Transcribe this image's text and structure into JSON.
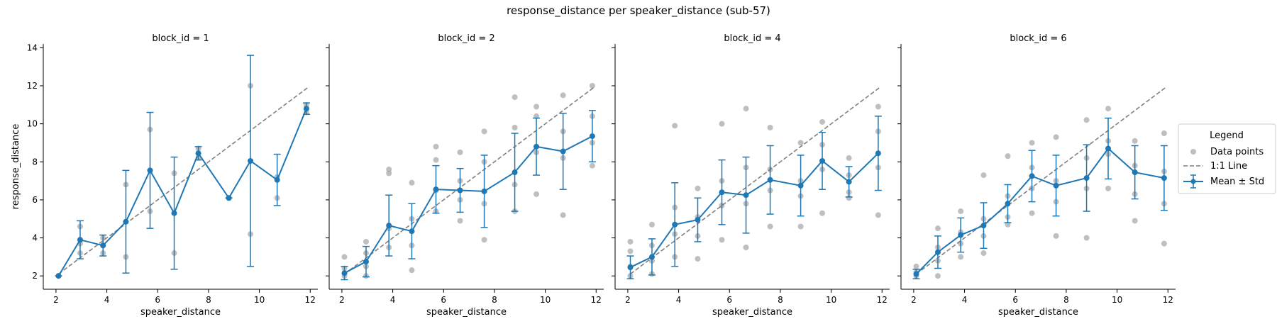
{
  "figure": {
    "title": "response_distance per speaker_distance (sub-57)",
    "colors": {
      "mean": "#1f77b4",
      "points": "#a9a9a9",
      "identity": "#808080"
    }
  },
  "legend": {
    "title": "Legend",
    "placement": "right",
    "items": [
      {
        "label": "Data points",
        "marker": "circle"
      },
      {
        "label": "1:1 Line",
        "marker": "dashed-line"
      },
      {
        "label": "Mean ± Std",
        "marker": "errorbar-line"
      }
    ]
  },
  "chart_data": [
    {
      "type": "line",
      "title": "block_id = 1",
      "xlabel": "speaker_distance",
      "ylabel": "response_distance",
      "xlim": [
        1.5,
        12.3
      ],
      "ylim": [
        1.3,
        14.2
      ],
      "xticks": [
        2,
        4,
        6,
        8,
        10,
        12
      ],
      "yticks": [
        2,
        4,
        6,
        8,
        10,
        12,
        14
      ],
      "identity_line": [
        [
          2.1,
          2.1
        ],
        [
          11.9,
          11.9
        ]
      ],
      "mean_series": {
        "x": [
          2.1,
          2.95,
          3.85,
          4.75,
          5.7,
          6.65,
          7.6,
          8.8,
          9.65,
          10.7,
          11.85
        ],
        "mean": [
          2.0,
          3.9,
          3.6,
          4.85,
          7.55,
          5.3,
          8.45,
          6.1,
          8.05,
          7.05,
          10.8
        ],
        "std": [
          0.0,
          1.0,
          0.55,
          2.7,
          3.05,
          2.95,
          0.35,
          0.0,
          5.55,
          1.35,
          0.3
        ]
      },
      "points": {
        "x": [
          2.1,
          2.95,
          2.95,
          2.95,
          3.85,
          3.85,
          3.85,
          4.75,
          4.75,
          5.7,
          5.7,
          6.65,
          6.65,
          7.6,
          7.6,
          8.8,
          9.65,
          9.65,
          10.7,
          10.7,
          11.85,
          11.85
        ],
        "y": [
          2.0,
          4.6,
          3.7,
          3.2,
          4.0,
          3.6,
          3.2,
          6.8,
          3.0,
          9.7,
          5.4,
          7.4,
          3.2,
          8.7,
          8.2,
          6.1,
          12.0,
          4.2,
          7.2,
          6.1,
          11.0,
          10.6
        ]
      }
    },
    {
      "type": "line",
      "title": "block_id = 2",
      "xlabel": "speaker_distance",
      "ylabel": "",
      "xlim": [
        1.5,
        12.3
      ],
      "ylim": [
        1.3,
        14.2
      ],
      "xticks": [
        2,
        4,
        6,
        8,
        10,
        12
      ],
      "yticks": [
        2,
        4,
        6,
        8,
        10,
        12,
        14
      ],
      "identity_line": [
        [
          2.1,
          2.1
        ],
        [
          11.9,
          11.9
        ]
      ],
      "mean_series": {
        "x": [
          2.1,
          2.95,
          3.85,
          4.75,
          5.7,
          6.65,
          7.6,
          8.8,
          9.65,
          10.7,
          11.85
        ],
        "mean": [
          2.15,
          2.75,
          4.65,
          4.35,
          6.55,
          6.5,
          6.45,
          7.45,
          8.8,
          8.55,
          9.35
        ],
        "std": [
          0.35,
          0.8,
          1.6,
          1.45,
          1.25,
          1.15,
          1.9,
          2.05,
          1.5,
          2.0,
          1.35
        ]
      },
      "points": {
        "x": [
          2.1,
          2.1,
          2.1,
          2.95,
          2.95,
          2.95,
          2.95,
          3.85,
          3.85,
          3.85,
          3.85,
          4.75,
          4.75,
          4.75,
          4.75,
          5.7,
          5.7,
          5.7,
          5.7,
          6.65,
          6.65,
          6.65,
          6.65,
          7.6,
          7.6,
          7.6,
          7.6,
          8.8,
          8.8,
          8.8,
          8.8,
          9.65,
          9.65,
          9.65,
          9.65,
          10.7,
          10.7,
          10.7,
          10.7,
          11.85,
          11.85,
          11.85,
          11.85
        ],
        "y": [
          3.0,
          2.4,
          2.0,
          3.8,
          3.2,
          2.5,
          2.0,
          7.6,
          7.4,
          4.5,
          3.5,
          6.9,
          5.0,
          3.6,
          2.3,
          8.8,
          8.1,
          6.5,
          5.4,
          8.5,
          7.0,
          6.0,
          4.9,
          9.6,
          8.0,
          5.8,
          3.9,
          11.4,
          9.8,
          6.8,
          5.4,
          10.9,
          10.4,
          8.5,
          6.3,
          11.5,
          9.6,
          8.2,
          5.2,
          12.0,
          10.4,
          9.0,
          7.8
        ]
      }
    },
    {
      "type": "line",
      "title": "block_id = 4",
      "xlabel": "speaker_distance",
      "ylabel": "",
      "xlim": [
        1.5,
        12.3
      ],
      "ylim": [
        1.3,
        14.2
      ],
      "xticks": [
        2,
        4,
        6,
        8,
        10,
        12
      ],
      "yticks": [
        2,
        4,
        6,
        8,
        10,
        12,
        14
      ],
      "identity_line": [
        [
          2.1,
          2.1
        ],
        [
          11.9,
          11.9
        ]
      ],
      "mean_series": {
        "x": [
          2.1,
          2.95,
          3.85,
          4.75,
          5.7,
          6.65,
          7.6,
          8.8,
          9.65,
          10.7,
          11.85
        ],
        "mean": [
          2.45,
          3.0,
          4.7,
          4.95,
          6.4,
          6.25,
          7.05,
          6.75,
          8.05,
          6.95,
          8.45
        ],
        "std": [
          0.6,
          0.95,
          2.2,
          1.15,
          1.7,
          2.0,
          1.8,
          1.6,
          1.5,
          0.8,
          1.95
        ]
      },
      "points": {
        "x": [
          2.1,
          2.1,
          2.1,
          2.1,
          2.95,
          2.95,
          2.95,
          2.95,
          3.85,
          3.85,
          3.85,
          3.85,
          4.75,
          4.75,
          4.75,
          4.75,
          5.7,
          5.7,
          5.7,
          5.7,
          6.65,
          6.65,
          6.65,
          6.65,
          7.6,
          7.6,
          7.6,
          7.6,
          8.8,
          8.8,
          8.8,
          8.8,
          9.65,
          9.65,
          9.65,
          9.65,
          10.7,
          10.7,
          10.7,
          10.7,
          11.85,
          11.85,
          11.85,
          11.85
        ],
        "y": [
          3.8,
          3.3,
          2.5,
          2.0,
          4.7,
          3.6,
          2.8,
          2.1,
          9.9,
          5.6,
          4.2,
          3.0,
          6.6,
          5.1,
          4.1,
          2.9,
          10.0,
          7.0,
          5.7,
          3.9,
          10.8,
          7.7,
          5.8,
          3.5,
          9.8,
          7.6,
          6.5,
          4.6,
          9.0,
          7.0,
          6.2,
          4.6,
          10.1,
          8.9,
          7.6,
          5.3,
          8.2,
          7.3,
          6.4,
          6.1,
          10.9,
          9.6,
          7.7,
          5.2
        ]
      }
    },
    {
      "type": "line",
      "title": "block_id = 6",
      "xlabel": "speaker_distance",
      "ylabel": "",
      "xlim": [
        1.5,
        12.3
      ],
      "ylim": [
        1.3,
        14.2
      ],
      "xticks": [
        2,
        4,
        6,
        8,
        10,
        12
      ],
      "yticks": [
        2,
        4,
        6,
        8,
        10,
        12,
        14
      ],
      "identity_line": [
        [
          2.1,
          2.1
        ],
        [
          11.9,
          11.9
        ]
      ],
      "mean_series": {
        "x": [
          2.1,
          2.95,
          3.85,
          4.75,
          5.7,
          6.65,
          7.6,
          8.8,
          9.65,
          10.7,
          11.85
        ],
        "mean": [
          2.1,
          3.25,
          4.15,
          4.65,
          5.8,
          7.25,
          6.75,
          7.15,
          8.7,
          7.45,
          7.15
        ],
        "std": [
          0.25,
          0.85,
          0.9,
          1.2,
          1.0,
          1.35,
          1.6,
          1.75,
          1.6,
          1.4,
          1.7
        ]
      },
      "points": {
        "x": [
          2.1,
          2.1,
          2.1,
          2.95,
          2.95,
          2.95,
          2.95,
          3.85,
          3.85,
          3.85,
          3.85,
          4.75,
          4.75,
          4.75,
          4.75,
          5.7,
          5.7,
          5.7,
          5.7,
          6.65,
          6.65,
          6.65,
          6.65,
          7.6,
          7.6,
          7.6,
          7.6,
          8.8,
          8.8,
          8.8,
          8.8,
          9.65,
          9.65,
          9.65,
          9.65,
          10.7,
          10.7,
          10.7,
          10.7,
          11.85,
          11.85,
          11.85,
          11.85
        ],
        "y": [
          2.5,
          2.2,
          2.0,
          4.5,
          3.5,
          2.8,
          2.0,
          5.4,
          4.3,
          3.7,
          3.0,
          7.3,
          5.0,
          4.1,
          3.2,
          8.3,
          6.2,
          5.1,
          4.7,
          9.0,
          7.7,
          6.6,
          5.3,
          9.3,
          7.0,
          5.9,
          4.1,
          10.2,
          8.2,
          6.6,
          4.0,
          10.8,
          9.1,
          8.4,
          6.6,
          9.1,
          7.8,
          6.3,
          4.9,
          9.5,
          7.5,
          5.8,
          3.7
        ]
      }
    }
  ]
}
